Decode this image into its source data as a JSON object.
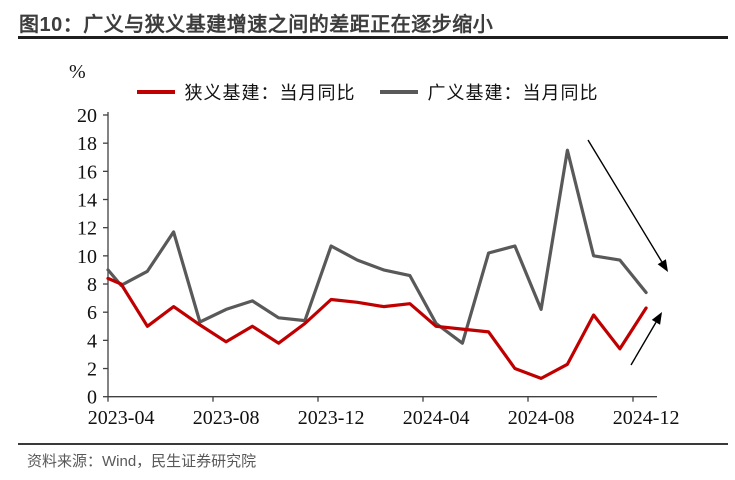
{
  "figure": {
    "title": "图10：广义与狭义基建增速之间的差距正在逐步缩小",
    "source": "资料来源：Wind，民生证券研究院"
  },
  "chart_data": {
    "type": "line",
    "title": "广义与狭义基建增速之间的差距正在逐步缩小",
    "y_unit": "%",
    "ylim": [
      0,
      20
    ],
    "y_tick_step": 2,
    "y_tick_labels": [
      "0",
      "2",
      "4",
      "6",
      "8",
      "10",
      "12",
      "14",
      "16",
      "18",
      "20"
    ],
    "x_tick_labels": [
      "2023-04",
      "2023-08",
      "2023-12",
      "2024-04",
      "2024-08",
      "2024-12"
    ],
    "grid": false,
    "legend_position": "top-center",
    "months": [
      "2023-04",
      "2023-05",
      "2023-06",
      "2023-07",
      "2023-08",
      "2023-09",
      "2023-10",
      "2023-11",
      "2023-12",
      "2024-01",
      "2024-02",
      "2024-03",
      "2024-04",
      "2024-05",
      "2024-06",
      "2024-07",
      "2024-08",
      "2024-09",
      "2024-10",
      "2024-11",
      "2024-12"
    ],
    "series": [
      {
        "name": "狭义基建：当月同比",
        "color": "#c00000",
        "axis_edge_value": 8.4,
        "values": [
          8.0,
          5.0,
          6.4,
          5.1,
          3.9,
          5.0,
          3.8,
          5.2,
          6.9,
          6.7,
          6.4,
          6.6,
          5.0,
          4.8,
          4.6,
          2.0,
          1.3,
          2.3,
          5.8,
          3.4,
          6.3
        ]
      },
      {
        "name": "广义基建：当月同比",
        "color": "#595959",
        "axis_edge_value": 9.0,
        "values": [
          7.9,
          8.9,
          11.7,
          5.3,
          6.2,
          6.8,
          5.6,
          5.4,
          10.7,
          9.7,
          9.0,
          8.6,
          5.2,
          3.8,
          10.2,
          10.7,
          6.2,
          17.5,
          10.0,
          9.7,
          7.4
        ]
      }
    ],
    "annotations": [
      {
        "id": "broad-trend-arrow",
        "direction": "down-right",
        "color": "#000000"
      },
      {
        "id": "narrow-trend-arrow",
        "direction": "up-right",
        "color": "#000000"
      }
    ]
  }
}
